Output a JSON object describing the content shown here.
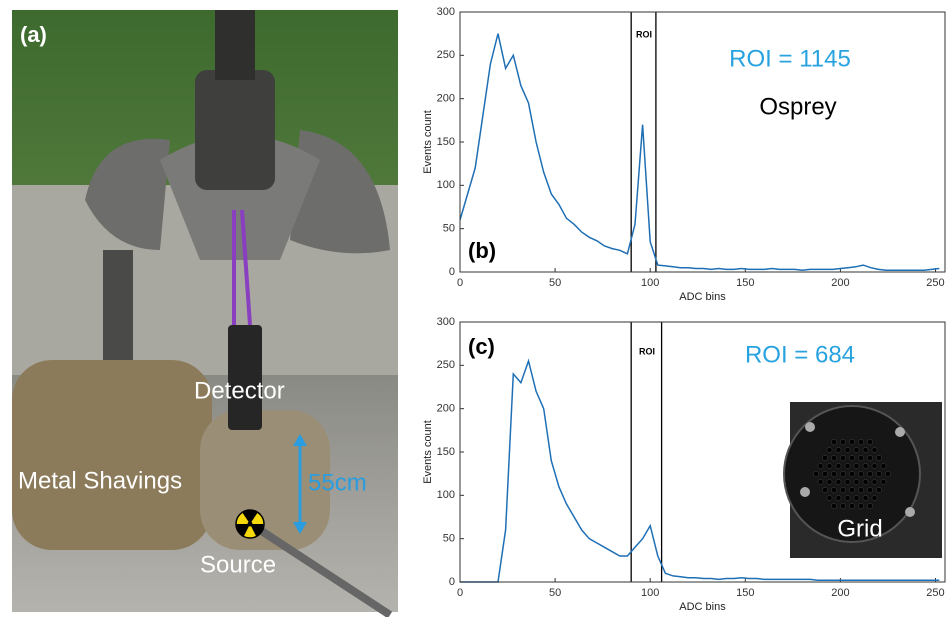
{
  "photo": {
    "panel_label": "(a)",
    "detector": "Detector",
    "shavings": "Metal Shavings",
    "distance": "55cm",
    "source": "Source"
  },
  "chart_data": [
    {
      "type": "line",
      "color": "#1f6fb5",
      "xlabel": "ADC bins",
      "ylabel": "Events count",
      "annotations": [
        "ROI",
        "ROI = 1145",
        "Osprey",
        "(b)"
      ],
      "roi_bounds": [
        90,
        103
      ],
      "xlim": [
        0,
        255
      ],
      "ylim": [
        0,
        300
      ],
      "xticks": [
        0,
        50,
        100,
        150,
        200,
        250
      ],
      "yticks": [
        0,
        50,
        100,
        150,
        200,
        250,
        300
      ],
      "x": [
        0,
        4,
        8,
        12,
        16,
        20,
        24,
        28,
        32,
        36,
        40,
        44,
        48,
        52,
        56,
        60,
        64,
        68,
        72,
        76,
        80,
        84,
        88,
        92,
        96,
        100,
        104,
        108,
        112,
        116,
        120,
        124,
        128,
        132,
        136,
        140,
        144,
        148,
        152,
        156,
        160,
        164,
        168,
        172,
        176,
        180,
        184,
        188,
        192,
        196,
        200,
        204,
        208,
        212,
        216,
        220,
        224,
        228,
        232,
        236,
        240,
        244,
        248,
        252
      ],
      "values": [
        60,
        90,
        120,
        180,
        240,
        275,
        235,
        250,
        215,
        195,
        150,
        115,
        90,
        78,
        62,
        55,
        46,
        40,
        36,
        30,
        27,
        25,
        21,
        55,
        170,
        35,
        8,
        7,
        6,
        5,
        5,
        4,
        4,
        3,
        4,
        3,
        3,
        4,
        3,
        3,
        3,
        4,
        3,
        3,
        3,
        2,
        3,
        3,
        3,
        3,
        4,
        5,
        6,
        8,
        5,
        3,
        2,
        2,
        2,
        2,
        2,
        2,
        3,
        4
      ]
    },
    {
      "type": "line",
      "color": "#1f6fb5",
      "xlabel": "ADC bins",
      "ylabel": "Events count",
      "annotations": [
        "ROI",
        "ROI = 684",
        "(c)",
        "Grid"
      ],
      "roi_bounds": [
        90,
        106
      ],
      "xlim": [
        0,
        255
      ],
      "ylim": [
        0,
        300
      ],
      "xticks": [
        0,
        50,
        100,
        150,
        200,
        250
      ],
      "yticks": [
        0,
        50,
        100,
        150,
        200,
        250,
        300
      ],
      "x": [
        0,
        4,
        8,
        12,
        16,
        20,
        24,
        28,
        32,
        36,
        40,
        44,
        48,
        52,
        56,
        60,
        64,
        68,
        72,
        76,
        80,
        84,
        88,
        92,
        96,
        100,
        104,
        108,
        112,
        116,
        120,
        124,
        128,
        132,
        136,
        140,
        144,
        148,
        152,
        156,
        160,
        164,
        168,
        172,
        176,
        180,
        184,
        188,
        192,
        196,
        200,
        204,
        208,
        212,
        216,
        220,
        224,
        228,
        232,
        236,
        240,
        244,
        248,
        252
      ],
      "values": [
        0,
        0,
        0,
        0,
        0,
        0,
        60,
        240,
        230,
        255,
        220,
        200,
        140,
        110,
        90,
        75,
        60,
        50,
        45,
        40,
        35,
        30,
        30,
        40,
        50,
        65,
        30,
        10,
        7,
        6,
        5,
        5,
        4,
        4,
        3,
        4,
        4,
        5,
        4,
        4,
        3,
        3,
        3,
        3,
        3,
        3,
        3,
        2,
        2,
        2,
        2,
        2,
        2,
        2,
        2,
        2,
        2,
        2,
        2,
        2,
        2,
        2,
        2,
        2
      ]
    }
  ]
}
